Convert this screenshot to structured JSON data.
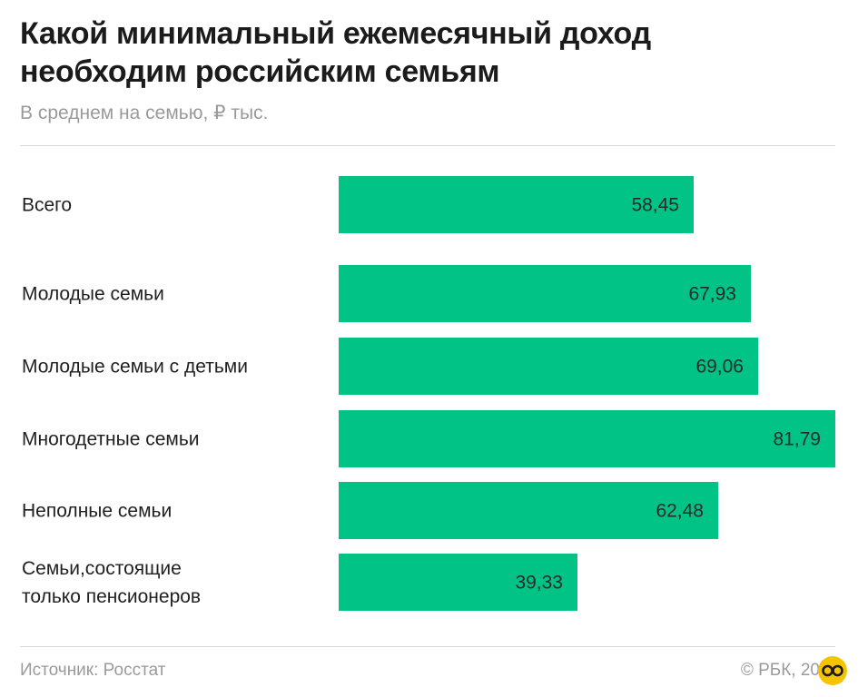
{
  "header": {
    "title": "Какой минимальный ежемесячный доход необходим российским семьям",
    "subtitle": "В среднем на семью, ₽ тыс."
  },
  "footer": {
    "source": "Источник: Росстат",
    "copyright": "© РБК, 20"
  },
  "logo_icon": "yellow-circle-logo-icon",
  "colors": {
    "bar": "#00c385",
    "text": "#1f1f1f",
    "muted": "#9a9a9a"
  },
  "chart_data": {
    "type": "bar",
    "orientation": "horizontal",
    "title": "Какой минимальный ежемесячный доход необходим российским семьям",
    "subtitle": "В среднем на семью, ₽ тыс.",
    "xlabel": "",
    "ylabel": "",
    "xlim": [
      0,
      81.79
    ],
    "grid": false,
    "categories": [
      [
        "Всего"
      ],
      [
        "Молодые семьи"
      ],
      [
        "Молодые семьи с детьми"
      ],
      [
        "Многодетные семьи"
      ],
      [
        "Неполные семьи"
      ],
      [
        "Семьи,состоящие",
        "только пенсионеров"
      ]
    ],
    "values": [
      58.45,
      67.93,
      69.06,
      81.79,
      62.48,
      39.33
    ],
    "value_labels": [
      "58,45",
      "67,93",
      "69,06",
      "81,79",
      "62,48",
      "39,33"
    ]
  }
}
